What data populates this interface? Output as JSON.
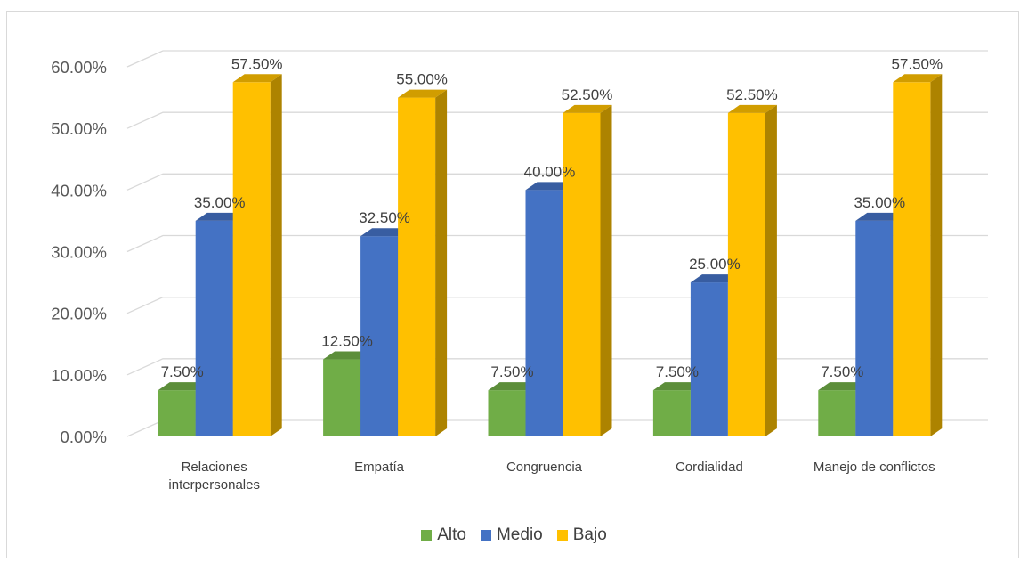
{
  "chart_data": {
    "type": "bar",
    "categories": [
      "Relaciones interpersonales",
      "Empatía",
      "Congruencia",
      "Cordialidad",
      "Manejo de conflictos"
    ],
    "category_lines": [
      [
        "Relaciones",
        "interpersonales"
      ],
      [
        "Empatía"
      ],
      [
        "Congruencia"
      ],
      [
        "Cordialidad"
      ],
      [
        "Manejo de conflictos"
      ]
    ],
    "series": [
      {
        "name": "Alto",
        "color": "#70ad47",
        "values": [
          7.5,
          12.5,
          7.5,
          7.5,
          7.5
        ],
        "labels": [
          "7.50%",
          "12.50%",
          "7.50%",
          "7.50%",
          "7.50%"
        ]
      },
      {
        "name": "Medio",
        "color": "#4472c4",
        "values": [
          35,
          32.5,
          40,
          25,
          35
        ],
        "labels": [
          "35.00%",
          "32.50%",
          "40.00%",
          "25.00%",
          "35.00%"
        ]
      },
      {
        "name": "Bajo",
        "color": "#ffc000",
        "values": [
          57.5,
          55,
          52.5,
          52.5,
          57.5
        ],
        "labels": [
          "57.50%",
          "55.00%",
          "52.50%",
          "52.50%",
          "57.50%"
        ]
      }
    ],
    "yticks": [
      0,
      10,
      20,
      30,
      40,
      50,
      60
    ],
    "ytick_labels": [
      "0.00%",
      "10.00%",
      "20.00%",
      "30.00%",
      "40.00%",
      "50.00%",
      "60.00%"
    ],
    "ylim": [
      0,
      60
    ],
    "grid": true,
    "legend_position": "bottom",
    "style": "3d-clustered-column"
  }
}
